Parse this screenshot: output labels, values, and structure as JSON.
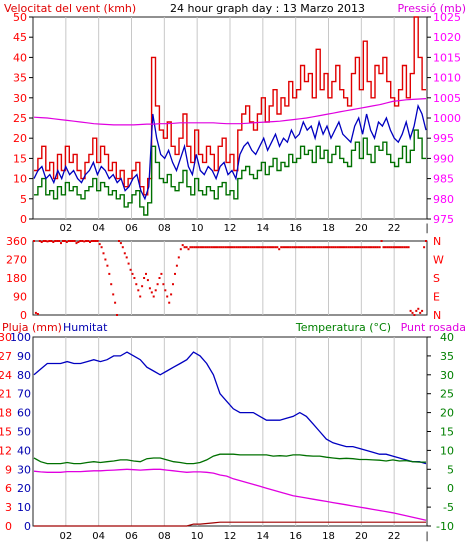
{
  "header": {
    "left_title": "Velocitat del vent (kmh)",
    "center_title": "24 hour graph day : 13 Marzo 2013",
    "right_title": "Pressió (mb)"
  },
  "bottom_header": {
    "left_a": "Pluja (mm)",
    "left_b": "Humitat",
    "right_a": "Temperatura (°C)",
    "right_b": "Punt rosada"
  },
  "colors": {
    "gust": "#e00000",
    "avg": "#0000c0",
    "low": "#007000",
    "pressure": "#e000e0",
    "direction": "#e00000",
    "humidity": "#0000c0",
    "temp": "#007000",
    "dew": "#e000e0",
    "rain": "#a00000",
    "axis_left": "#ff0000",
    "axis_right": "#ff00ff",
    "humidity_axis": "#0000b0",
    "temp_axis": "#008000"
  },
  "chart_data": [
    {
      "type": "line",
      "title": "24 hour graph day : 13 Marzo 2013",
      "x_ticks": [
        "02",
        "04",
        "06",
        "08",
        "10",
        "12",
        "14",
        "16",
        "18",
        "20",
        "22",
        "|"
      ],
      "left_axis": {
        "label": "Velocitat del vent (kmh)",
        "ticks": [
          0,
          5,
          10,
          15,
          20,
          25,
          30,
          35,
          40,
          45,
          50
        ],
        "range": [
          0,
          50
        ]
      },
      "right_axis": {
        "label": "Pressió (mb)",
        "ticks": [
          975,
          980,
          985,
          990,
          995,
          1000,
          1005,
          1010,
          1015,
          1020,
          1025
        ],
        "range": [
          975,
          1025
        ]
      },
      "series": [
        {
          "name": "",
          "values": [
            12,
            15,
            18,
            12,
            14,
            10,
            16,
            12,
            18,
            14,
            16,
            12,
            10,
            14,
            16,
            20,
            14,
            18,
            16,
            12,
            14,
            10,
            12,
            8,
            10,
            12,
            14,
            8,
            6,
            10,
            40,
            28,
            22,
            20,
            24,
            18,
            16,
            20,
            26,
            18,
            14,
            22,
            16,
            14,
            18,
            16,
            12,
            18,
            20,
            14,
            16,
            12,
            22,
            26,
            28,
            24,
            22,
            26,
            30,
            24,
            28,
            32,
            26,
            30,
            28,
            34,
            30,
            32,
            38,
            34,
            36,
            30,
            42,
            32,
            36,
            30,
            34,
            38,
            32,
            30,
            28,
            36,
            40,
            32,
            44,
            34,
            30,
            38,
            36,
            40,
            34,
            30,
            28,
            32,
            38,
            30,
            36,
            50,
            40,
            32
          ]
        },
        {
          "name": "",
          "values": [
            10,
            12,
            13,
            10,
            11,
            9,
            12,
            10,
            13,
            11,
            12,
            10,
            9,
            11,
            12,
            14,
            11,
            13,
            12,
            10,
            11,
            9,
            10,
            7,
            8,
            10,
            11,
            7,
            5,
            8,
            26,
            20,
            16,
            15,
            17,
            14,
            12,
            15,
            18,
            13,
            11,
            16,
            12,
            11,
            13,
            12,
            10,
            13,
            14,
            11,
            12,
            10,
            16,
            18,
            19,
            17,
            16,
            18,
            20,
            17,
            19,
            21,
            18,
            20,
            19,
            22,
            20,
            21,
            24,
            22,
            23,
            20,
            24,
            21,
            23,
            20,
            22,
            24,
            21,
            20,
            19,
            23,
            25,
            21,
            26,
            22,
            20,
            24,
            23,
            25,
            22,
            20,
            19,
            21,
            24,
            20,
            23,
            28,
            26,
            22
          ]
        },
        {
          "name": "",
          "values": [
            6,
            8,
            10,
            6,
            7,
            5,
            8,
            6,
            9,
            7,
            8,
            6,
            5,
            7,
            8,
            10,
            7,
            9,
            8,
            6,
            7,
            5,
            6,
            3,
            4,
            6,
            7,
            3,
            1,
            4,
            18,
            14,
            10,
            9,
            11,
            8,
            7,
            9,
            12,
            8,
            6,
            10,
            7,
            6,
            8,
            7,
            5,
            8,
            9,
            6,
            7,
            5,
            10,
            12,
            13,
            11,
            10,
            12,
            14,
            11,
            13,
            15,
            12,
            14,
            13,
            16,
            14,
            15,
            18,
            16,
            17,
            14,
            18,
            15,
            17,
            14,
            16,
            18,
            15,
            14,
            13,
            17,
            19,
            15,
            20,
            16,
            14,
            18,
            17,
            19,
            16,
            14,
            13,
            15,
            18,
            14,
            17,
            22,
            20,
            15
          ]
        },
        {
          "name": "",
          "values": [
            1000.2,
            1000.1,
            1000.0,
            999.8,
            999.6,
            999.4,
            999.2,
            999.0,
            998.8,
            998.6,
            998.5,
            998.4,
            998.3,
            998.3,
            998.3,
            998.3,
            998.4,
            998.5,
            998.5,
            998.6,
            998.6,
            998.7,
            998.8,
            998.8,
            998.8,
            998.8,
            998.8,
            998.8,
            998.7,
            998.6,
            998.6,
            998.6,
            998.7,
            998.8,
            998.9,
            999.0,
            999.1,
            999.2,
            999.4,
            999.6,
            999.8,
            1000.0,
            1000.3,
            1000.6,
            1000.9,
            1001.2,
            1001.5,
            1001.8,
            1002.1,
            1002.4,
            1002.7,
            1003.0,
            1003.3,
            1003.7,
            1004.1,
            1004.3,
            1004.5,
            1004.6,
            1004.7,
            1004.8
          ]
        }
      ]
    },
    {
      "type": "scatter",
      "x_ticks": [
        "02",
        "04",
        "06",
        "08",
        "10",
        "12",
        "14",
        "16",
        "18",
        "20",
        "22",
        "|"
      ],
      "left_axis": {
        "ticks": [
          0,
          90,
          180,
          270,
          360
        ],
        "range": [
          0,
          360
        ]
      },
      "right_axis": {
        "ticks": [
          "N",
          "E",
          "S",
          "W",
          "N"
        ]
      },
      "series": [
        {
          "name": "",
          "values": [
            360,
            10,
            5,
            360,
            355,
            360,
            360,
            358,
            360,
            360,
            355,
            360,
            360,
            360,
            350,
            360,
            360,
            355,
            360,
            360,
            360,
            360,
            350,
            355,
            360,
            360,
            358,
            360,
            360,
            355,
            360,
            360,
            360,
            360,
            345,
            330,
            300,
            270,
            240,
            200,
            150,
            100,
            60,
            0,
            360,
            350,
            330,
            300,
            280,
            250,
            220,
            200,
            180,
            150,
            120,
            90,
            140,
            180,
            200,
            170,
            130,
            110,
            90,
            120,
            150,
            180,
            200,
            150,
            120,
            90,
            60,
            100,
            150,
            200,
            240,
            280,
            320,
            340,
            330,
            330,
            320,
            330,
            330,
            330,
            330,
            330,
            330,
            330,
            330,
            330,
            330,
            330,
            330,
            330,
            330,
            330,
            330,
            330,
            330,
            330,
            330,
            330,
            330,
            330,
            330,
            330,
            330,
            330,
            330,
            330,
            330,
            330,
            330,
            330,
            330,
            330,
            330,
            330,
            330,
            330,
            330,
            330,
            330,
            330,
            330,
            330,
            330,
            320,
            330,
            330,
            330,
            330,
            330,
            330,
            330,
            330,
            330,
            330,
            330,
            330,
            330,
            330,
            330,
            330,
            330,
            330,
            330,
            330,
            330,
            330,
            330,
            330,
            330,
            330,
            330,
            330,
            330,
            330,
            330,
            330,
            330,
            330,
            330,
            330,
            330,
            330,
            330,
            330,
            330,
            330,
            330,
            330,
            330,
            330,
            330,
            330,
            330,
            330,
            330,
            330,
            360,
            330,
            330,
            330,
            330,
            330,
            330,
            330,
            330,
            330,
            330,
            330,
            330,
            330,
            330,
            20,
            10,
            0,
            20,
            30,
            10,
            20,
            330,
            360
          ]
        }
      ]
    },
    {
      "type": "line",
      "x_ticks": [
        "02",
        "04",
        "06",
        "08",
        "10",
        "12",
        "14",
        "16",
        "18",
        "20",
        "22",
        "|"
      ],
      "rain_axis": {
        "label": "Pluja (mm)",
        "ticks": [
          0,
          3,
          6,
          9,
          12,
          15,
          18,
          21,
          24,
          27,
          30
        ],
        "range": [
          0,
          30
        ]
      },
      "humidity_axis": {
        "label": "Humitat",
        "ticks": [
          0,
          10,
          20,
          30,
          40,
          50,
          60,
          70,
          80,
          90,
          100
        ],
        "range": [
          0,
          100
        ]
      },
      "temp_axis": {
        "label": "Temperatura (°C)",
        "ticks": [
          -10,
          -5,
          0,
          5,
          10,
          15,
          20,
          25,
          30,
          35,
          40
        ],
        "range": [
          -10,
          40
        ]
      },
      "series": [
        {
          "name": "Humitat",
          "values": [
            80,
            83,
            86,
            86,
            86,
            87,
            86,
            86,
            87,
            88,
            87,
            88,
            90,
            90,
            92,
            90,
            88,
            84,
            82,
            80,
            82,
            84,
            86,
            88,
            92,
            90,
            86,
            80,
            70,
            66,
            62,
            60,
            60,
            60,
            58,
            56,
            56,
            56,
            57,
            58,
            60,
            58,
            54,
            50,
            46,
            44,
            43,
            42,
            42,
            41,
            40,
            39,
            38,
            38,
            37,
            36,
            35,
            34,
            34,
            33
          ]
        },
        {
          "name": "Temperatura (°C)",
          "values": [
            8,
            7,
            6.5,
            6.5,
            6.5,
            6.8,
            6.5,
            6.5,
            6.8,
            7,
            6.8,
            7,
            7.2,
            7.5,
            7.5,
            7.2,
            7,
            7.8,
            8,
            8,
            7.5,
            7,
            6.8,
            6.5,
            6.5,
            6.8,
            7.5,
            8.5,
            9,
            9,
            9,
            8.8,
            8.8,
            8.8,
            8.8,
            8.8,
            8.5,
            8.6,
            8.5,
            8.8,
            8.8,
            8.6,
            8.5,
            8.5,
            8.2,
            8.0,
            7.8,
            7.9,
            7.8,
            7.6,
            7.6,
            7.5,
            7.4,
            7.2,
            7.5,
            7.2,
            7.3,
            7,
            6.9,
            6.9
          ]
        },
        {
          "name": "Punt rosada",
          "values": [
            4.5,
            4.3,
            4.2,
            4.2,
            4.2,
            4.4,
            4.4,
            4.4,
            4.5,
            4.6,
            4.6,
            4.7,
            4.8,
            4.9,
            5.0,
            4.9,
            4.8,
            4.9,
            5.0,
            5.0,
            4.8,
            4.6,
            4.4,
            4.2,
            4.3,
            4.3,
            4.2,
            4.0,
            3.5,
            3.2,
            2.5,
            2.0,
            1.5,
            1.0,
            0.5,
            0.0,
            -0.5,
            -1.0,
            -1.5,
            -2.0,
            -2.3,
            -2.6,
            -2.9,
            -3.2,
            -3.5,
            -3.8,
            -4.1,
            -4.4,
            -4.7,
            -5.0,
            -5.3,
            -5.6,
            -5.9,
            -6.2,
            -6.5,
            -6.9,
            -7.3,
            -7.7,
            -8.1,
            -8.5
          ]
        },
        {
          "name": "Pluja (mm)",
          "values": [
            0,
            0,
            0,
            0,
            0,
            0,
            0,
            0,
            0,
            0,
            0,
            0,
            0,
            0,
            0,
            0,
            0,
            0,
            0,
            0,
            0,
            0,
            0,
            0,
            0.3,
            0.3,
            0.4,
            0.5,
            0.6,
            0.6,
            0.6,
            0.6,
            0.6,
            0.6,
            0.6,
            0.6,
            0.6,
            0.6,
            0.6,
            0.6,
            0.6,
            0.6,
            0.6,
            0.6,
            0.6,
            0.6,
            0.6,
            0.6,
            0.6,
            0.6,
            0.6,
            0.6,
            0.6,
            0.6,
            0.6,
            0.6,
            0.6,
            0.6,
            0.6,
            0.6
          ]
        }
      ]
    }
  ]
}
